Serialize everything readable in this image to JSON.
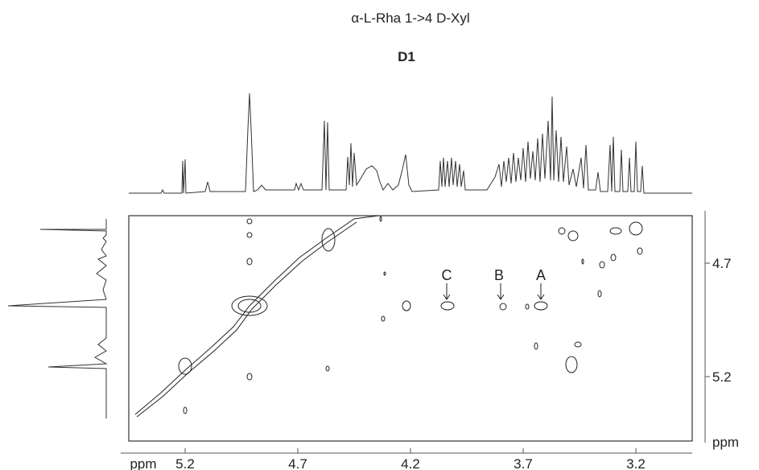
{
  "title": "α-L-Rha 1->4 D-Xyl",
  "subtitle": "D1",
  "x_axis": {
    "unit": "ppm",
    "ticks": [
      "5.2",
      "4.7",
      "4.2",
      "3.7",
      "3.2"
    ]
  },
  "y_axis": {
    "unit": "ppm",
    "ticks": [
      "4.7",
      "5.2"
    ]
  },
  "peak_labels": [
    "A",
    "B",
    "C"
  ]
}
